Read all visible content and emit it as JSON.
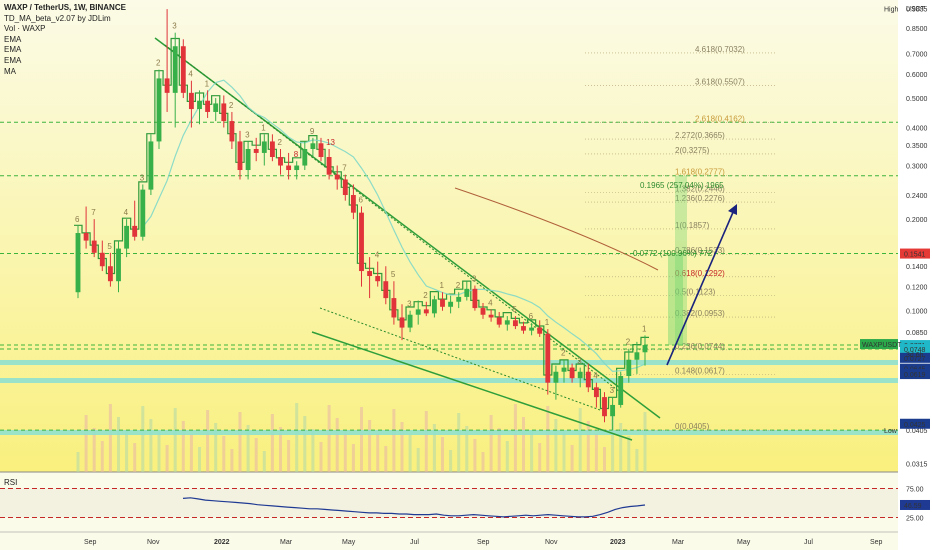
{
  "header": {
    "title": "WAXP / TetherUS, 1W, BINANCE",
    "indicators": [
      "TD_MA_beta_v2.07 by JDLim",
      "Vol · WAXP",
      "EMA",
      "EMA",
      "EMA",
      "MA"
    ]
  },
  "rsi_label": "RSI",
  "colors": {
    "bull": "#38b04a",
    "bear": "#e0333a",
    "trend": "#2e9e3a",
    "fib": "#b0a070",
    "arrow": "#1a237e",
    "bg_top": "#fbfbe7",
    "bg_bottom": "#f9f07e"
  },
  "chart_data": [
    {
      "type": "candlestick",
      "symbol": "WAXPUSDT",
      "scale": "log",
      "price_axis_unit": "USDT",
      "price_ticks": [
        "0.9835",
        "0.8500",
        "0.7000",
        "0.6000",
        "0.5000",
        "0.4000",
        "0.3500",
        "0.3000",
        "0.2400",
        "0.2000",
        "0.1541",
        "0.1400",
        "0.1200",
        "0.1000",
        "0.0850",
        "0.0771",
        "0.0748",
        "0.0430",
        "0.0405",
        "0.0315"
      ],
      "time_ticks": [
        "Sep",
        "Nov",
        "2022",
        "Mar",
        "May",
        "Jul",
        "Sep",
        "Nov",
        "2023",
        "Mar",
        "May",
        "Jul",
        "Sep"
      ],
      "high_label": "High",
      "high_value": "0.9835",
      "low_label": "Low",
      "low_value": "0.0405",
      "last_price": "0.0771",
      "last_price_countdown": "3d 6h",
      "right_badges": [
        "0.1541",
        "0.0771",
        "0.0749",
        "0.0748",
        "0.0727",
        "0.0645",
        "0.0619",
        "0.0425"
      ],
      "fib_levels": [
        {
          "label": "4.618(0.7032)",
          "value": 0.7032
        },
        {
          "label": "3.618(0.5507)",
          "value": 0.5507
        },
        {
          "label": "2.618(0.4162)",
          "value": 0.4162
        },
        {
          "label": "2.272(0.3665)",
          "value": 0.3665
        },
        {
          "label": "2(0.3275)",
          "value": 0.3275
        },
        {
          "label": "1.618(0.2777)",
          "value": 0.2777
        },
        {
          "label": "1.382(0.2446)",
          "value": 0.2446
        },
        {
          "label": "1.236(0.2276)",
          "value": 0.2276
        },
        {
          "label": "1(0.1857)",
          "value": 0.1857
        },
        {
          "label": "0.786(0.1533)",
          "value": 0.1533
        },
        {
          "label": "0.618(0.1292)",
          "value": 0.1292
        },
        {
          "label": "0.5(0.1123)",
          "value": 0.1123
        },
        {
          "label": "0.382(0.0953)",
          "value": 0.0953
        },
        {
          "label": "0.236(0.0744)",
          "value": 0.0744
        },
        {
          "label": "0.148(0.0617)",
          "value": 0.0617
        },
        {
          "label": "0(0.0405)",
          "value": 0.0405
        }
      ],
      "horizontal_levels": [
        0.4162,
        0.2777,
        0.1541,
        0.0771,
        0.0748,
        0.0405
      ],
      "targets": [
        {
          "label": "0.1965 (257.04%) 1965",
          "pct": 257.04
        },
        {
          "label": "0.0772 (100.96%) 772",
          "pct": 100.96
        }
      ],
      "td_counts": [
        "6",
        "7",
        "5",
        "4",
        "3",
        "2",
        "3",
        "4",
        "1",
        "2",
        "3",
        "1",
        "2",
        "8",
        "9",
        "13",
        "7",
        "6",
        "4",
        "5",
        "3",
        "2",
        "1",
        "2",
        "3",
        "4",
        "5",
        "6",
        "1",
        "2",
        "3",
        "4",
        "3",
        "2",
        "1"
      ],
      "candles": [
        {
          "t": "Aug-21",
          "o": 0.115,
          "h": 0.19,
          "l": 0.11,
          "c": 0.18
        },
        {
          "t": "Aug-21",
          "o": 0.18,
          "h": 0.22,
          "l": 0.16,
          "c": 0.17
        },
        {
          "t": "Sep-21",
          "o": 0.17,
          "h": 0.2,
          "l": 0.15,
          "c": 0.155
        },
        {
          "t": "Sep-21",
          "o": 0.155,
          "h": 0.17,
          "l": 0.135,
          "c": 0.14
        },
        {
          "t": "Sep-21",
          "o": 0.14,
          "h": 0.155,
          "l": 0.12,
          "c": 0.125
        },
        {
          "t": "Sep-21",
          "o": 0.125,
          "h": 0.17,
          "l": 0.115,
          "c": 0.16
        },
        {
          "t": "Oct-21",
          "o": 0.16,
          "h": 0.2,
          "l": 0.15,
          "c": 0.19
        },
        {
          "t": "Oct-21",
          "o": 0.19,
          "h": 0.23,
          "l": 0.17,
          "c": 0.175
        },
        {
          "t": "Oct-21",
          "o": 0.175,
          "h": 0.26,
          "l": 0.17,
          "c": 0.25
        },
        {
          "t": "Oct-21",
          "o": 0.25,
          "h": 0.38,
          "l": 0.24,
          "c": 0.36
        },
        {
          "t": "Nov-21",
          "o": 0.36,
          "h": 0.62,
          "l": 0.34,
          "c": 0.58
        },
        {
          "t": "Nov-21",
          "o": 0.58,
          "h": 0.98,
          "l": 0.45,
          "c": 0.52
        },
        {
          "t": "Nov-21",
          "o": 0.52,
          "h": 0.82,
          "l": 0.4,
          "c": 0.74
        },
        {
          "t": "Nov-21",
          "o": 0.74,
          "h": 0.78,
          "l": 0.5,
          "c": 0.52
        },
        {
          "t": "Dec-21",
          "o": 0.52,
          "h": 0.57,
          "l": 0.4,
          "c": 0.46
        },
        {
          "t": "Dec-21",
          "o": 0.46,
          "h": 0.53,
          "l": 0.41,
          "c": 0.49
        },
        {
          "t": "Dec-21",
          "o": 0.49,
          "h": 0.53,
          "l": 0.43,
          "c": 0.45
        },
        {
          "t": "Dec-21",
          "o": 0.45,
          "h": 0.5,
          "l": 0.42,
          "c": 0.48
        },
        {
          "t": "Jan-22",
          "o": 0.48,
          "h": 0.51,
          "l": 0.4,
          "c": 0.42
        },
        {
          "t": "Jan-22",
          "o": 0.42,
          "h": 0.45,
          "l": 0.34,
          "c": 0.36
        },
        {
          "t": "Jan-22",
          "o": 0.36,
          "h": 0.39,
          "l": 0.27,
          "c": 0.29
        },
        {
          "t": "Jan-22",
          "o": 0.29,
          "h": 0.36,
          "l": 0.27,
          "c": 0.34
        },
        {
          "t": "Feb-22",
          "o": 0.34,
          "h": 0.37,
          "l": 0.31,
          "c": 0.33
        },
        {
          "t": "Feb-22",
          "o": 0.33,
          "h": 0.38,
          "l": 0.3,
          "c": 0.36
        },
        {
          "t": "Feb-22",
          "o": 0.36,
          "h": 0.38,
          "l": 0.31,
          "c": 0.32
        },
        {
          "t": "Feb-22",
          "o": 0.32,
          "h": 0.34,
          "l": 0.28,
          "c": 0.3
        },
        {
          "t": "Mar-22",
          "o": 0.3,
          "h": 0.33,
          "l": 0.27,
          "c": 0.29
        },
        {
          "t": "Mar-22",
          "o": 0.29,
          "h": 0.31,
          "l": 0.27,
          "c": 0.3
        },
        {
          "t": "Mar-22",
          "o": 0.3,
          "h": 0.36,
          "l": 0.29,
          "c": 0.34
        },
        {
          "t": "Mar-22",
          "o": 0.34,
          "h": 0.37,
          "l": 0.32,
          "c": 0.355
        },
        {
          "t": "Apr-22",
          "o": 0.355,
          "h": 0.37,
          "l": 0.31,
          "c": 0.32
        },
        {
          "t": "Apr-22",
          "o": 0.32,
          "h": 0.34,
          "l": 0.27,
          "c": 0.28
        },
        {
          "t": "Apr-22",
          "o": 0.28,
          "h": 0.3,
          "l": 0.25,
          "c": 0.27
        },
        {
          "t": "Apr-22",
          "o": 0.27,
          "h": 0.28,
          "l": 0.23,
          "c": 0.24
        },
        {
          "t": "May-22",
          "o": 0.24,
          "h": 0.26,
          "l": 0.2,
          "c": 0.21
        },
        {
          "t": "May-22",
          "o": 0.21,
          "h": 0.22,
          "l": 0.12,
          "c": 0.135
        },
        {
          "t": "May-22",
          "o": 0.135,
          "h": 0.15,
          "l": 0.11,
          "c": 0.13
        },
        {
          "t": "May-22",
          "o": 0.13,
          "h": 0.145,
          "l": 0.12,
          "c": 0.125
        },
        {
          "t": "Jun-22",
          "o": 0.125,
          "h": 0.14,
          "l": 0.105,
          "c": 0.11
        },
        {
          "t": "Jun-22",
          "o": 0.11,
          "h": 0.125,
          "l": 0.09,
          "c": 0.095
        },
        {
          "t": "Jun-22",
          "o": 0.095,
          "h": 0.105,
          "l": 0.08,
          "c": 0.088
        },
        {
          "t": "Jun-22",
          "o": 0.088,
          "h": 0.1,
          "l": 0.085,
          "c": 0.097
        },
        {
          "t": "Jul-22",
          "o": 0.097,
          "h": 0.108,
          "l": 0.09,
          "c": 0.101
        },
        {
          "t": "Jul-22",
          "o": 0.101,
          "h": 0.107,
          "l": 0.096,
          "c": 0.098
        },
        {
          "t": "Jul-22",
          "o": 0.098,
          "h": 0.112,
          "l": 0.095,
          "c": 0.109
        },
        {
          "t": "Jul-22",
          "o": 0.109,
          "h": 0.115,
          "l": 0.1,
          "c": 0.103
        },
        {
          "t": "Aug-22",
          "o": 0.103,
          "h": 0.112,
          "l": 0.098,
          "c": 0.107
        },
        {
          "t": "Aug-22",
          "o": 0.107,
          "h": 0.115,
          "l": 0.102,
          "c": 0.111
        },
        {
          "t": "Aug-22",
          "o": 0.111,
          "h": 0.125,
          "l": 0.108,
          "c": 0.118
        },
        {
          "t": "Aug-22",
          "o": 0.118,
          "h": 0.121,
          "l": 0.1,
          "c": 0.102
        },
        {
          "t": "Sep-22",
          "o": 0.102,
          "h": 0.106,
          "l": 0.094,
          "c": 0.097
        },
        {
          "t": "Sep-22",
          "o": 0.097,
          "h": 0.101,
          "l": 0.092,
          "c": 0.095
        },
        {
          "t": "Sep-22",
          "o": 0.095,
          "h": 0.099,
          "l": 0.088,
          "c": 0.09
        },
        {
          "t": "Sep-22",
          "o": 0.09,
          "h": 0.096,
          "l": 0.086,
          "c": 0.093
        },
        {
          "t": "Oct-22",
          "o": 0.093,
          "h": 0.096,
          "l": 0.087,
          "c": 0.089
        },
        {
          "t": "Oct-22",
          "o": 0.089,
          "h": 0.092,
          "l": 0.084,
          "c": 0.086
        },
        {
          "t": "Oct-22",
          "o": 0.086,
          "h": 0.091,
          "l": 0.083,
          "c": 0.088
        },
        {
          "t": "Oct-22",
          "o": 0.088,
          "h": 0.093,
          "l": 0.082,
          "c": 0.084
        },
        {
          "t": "Nov-22",
          "o": 0.084,
          "h": 0.087,
          "l": 0.053,
          "c": 0.058
        },
        {
          "t": "Nov-22",
          "o": 0.058,
          "h": 0.066,
          "l": 0.051,
          "c": 0.063
        },
        {
          "t": "Nov-22",
          "o": 0.063,
          "h": 0.069,
          "l": 0.058,
          "c": 0.065
        },
        {
          "t": "Nov-22",
          "o": 0.065,
          "h": 0.067,
          "l": 0.058,
          "c": 0.06
        },
        {
          "t": "Dec-22",
          "o": 0.06,
          "h": 0.065,
          "l": 0.056,
          "c": 0.063
        },
        {
          "t": "Dec-22",
          "o": 0.063,
          "h": 0.067,
          "l": 0.054,
          "c": 0.056
        },
        {
          "t": "Dec-22",
          "o": 0.056,
          "h": 0.058,
          "l": 0.048,
          "c": 0.052
        },
        {
          "t": "Dec-22",
          "o": 0.052,
          "h": 0.054,
          "l": 0.043,
          "c": 0.045
        },
        {
          "t": "Jan-23",
          "o": 0.045,
          "h": 0.052,
          "l": 0.0405,
          "c": 0.049
        },
        {
          "t": "Jan-23",
          "o": 0.049,
          "h": 0.063,
          "l": 0.048,
          "c": 0.061
        },
        {
          "t": "Jan-23",
          "o": 0.061,
          "h": 0.075,
          "l": 0.058,
          "c": 0.069
        },
        {
          "t": "Jan-23",
          "o": 0.069,
          "h": 0.079,
          "l": 0.062,
          "c": 0.073
        },
        {
          "t": "Feb-23",
          "o": 0.073,
          "h": 0.083,
          "l": 0.066,
          "c": 0.0771
        }
      ]
    },
    {
      "type": "line",
      "name": "RSI",
      "y_ticks": [
        "75.00",
        "46.59",
        "25.00"
      ],
      "ylim": [
        0,
        100
      ],
      "last_value": "46.59",
      "values": [
        58,
        59,
        57,
        55,
        54,
        53,
        52,
        51,
        50,
        49,
        47,
        46,
        45,
        44,
        43,
        42,
        41,
        40,
        40,
        39,
        38,
        37,
        36,
        35,
        34,
        33,
        33,
        32,
        32,
        31,
        31,
        30,
        30,
        30,
        31,
        29,
        28,
        28,
        29,
        30,
        29,
        28,
        27,
        26,
        27,
        28,
        29,
        28,
        29,
        30,
        29,
        28,
        27,
        26,
        26,
        27,
        30,
        34,
        39,
        42,
        44,
        45,
        46.59
      ]
    }
  ]
}
